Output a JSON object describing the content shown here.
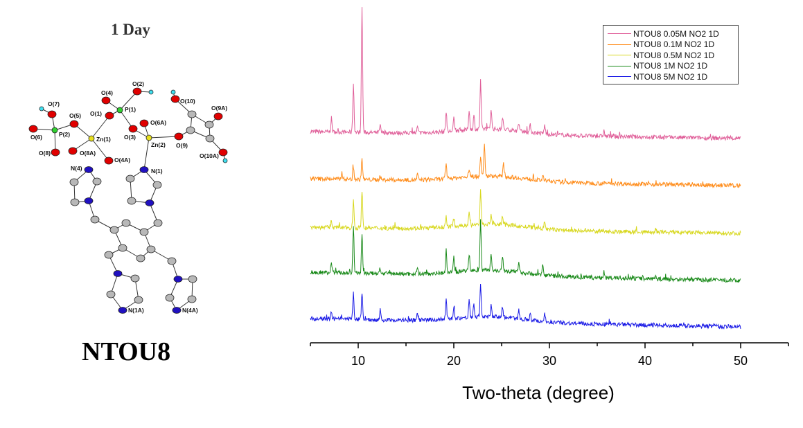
{
  "panel_title": "1 Day",
  "compound_name": "NTOU8",
  "molecule_labels": {
    "O2": "O(2)",
    "O4": "O(4)",
    "P1": "P(1)",
    "O1": "O(1)",
    "O3": "O(3)",
    "Zn1": "Zn(1)",
    "O5": "O(5)",
    "P2": "P(2)",
    "O7": "O(7)",
    "O6": "O(6)",
    "O8": "O(8)",
    "O8A": "O(8A)",
    "O4A": "O(4A)",
    "Zn2": "Zn(2)",
    "O6A": "O(6A)",
    "O9": "O(9)",
    "O10": "O(10)",
    "O9A": "O(9A)",
    "O10A": "O(10A)",
    "N1": "N(1)",
    "N4": "N(4)",
    "N1A": "N(1A)",
    "N4A": "N(4A)"
  },
  "chart_data": {
    "type": "line",
    "title": "",
    "xlabel": "Two-theta (degree)",
    "ylabel": "",
    "xlim": [
      5,
      55
    ],
    "xticks": [
      10,
      20,
      30,
      40,
      50
    ],
    "xtick_labels": [
      "10",
      "20",
      "30",
      "40",
      "50"
    ],
    "ylim": [
      0,
      490
    ],
    "grid": false,
    "legend_position": "top-right",
    "y_units": "intensity (a.u., offset stacked)",
    "series": [
      {
        "name": "NTOU8 0.05M NO2 1D",
        "color": "#e0609a",
        "offset_start": 305,
        "offset_end": 295,
        "peaks": [
          [
            7.2,
            20
          ],
          [
            9.5,
            70
          ],
          [
            10.4,
            180
          ],
          [
            12.3,
            10
          ],
          [
            16.2,
            8
          ],
          [
            19.2,
            30
          ],
          [
            20,
            18
          ],
          [
            21.6,
            28
          ],
          [
            22.1,
            20
          ],
          [
            22.8,
            70
          ],
          [
            23.9,
            30
          ],
          [
            25.1,
            18
          ],
          [
            26.8,
            12
          ],
          [
            28,
            10
          ],
          [
            29.5,
            12
          ],
          [
            35.7,
            8
          ]
        ]
      },
      {
        "name": "NTOU8 0.1M NO2 1D",
        "color": "#ff8c1a",
        "offset_start": 237,
        "offset_end": 227,
        "peaks": [
          [
            8.3,
            10
          ],
          [
            9.5,
            18
          ],
          [
            10.4,
            30
          ],
          [
            12.3,
            6
          ],
          [
            16.2,
            8
          ],
          [
            19.2,
            20
          ],
          [
            21.6,
            12
          ],
          [
            22.8,
            30
          ],
          [
            23.2,
            45
          ],
          [
            25.2,
            18
          ],
          [
            29.3,
            8
          ]
        ]
      },
      {
        "name": "NTOU8 0.5M NO2 1D",
        "color": "#d8d820",
        "offset_start": 167,
        "offset_end": 158,
        "peaks": [
          [
            7.2,
            10
          ],
          [
            9.5,
            40
          ],
          [
            10.4,
            55
          ],
          [
            19.2,
            15
          ],
          [
            20,
            12
          ],
          [
            21.6,
            18
          ],
          [
            22.8,
            50
          ],
          [
            23.9,
            15
          ],
          [
            25.1,
            12
          ],
          [
            29.5,
            10
          ]
        ]
      },
      {
        "name": "NTOU8 1M NO2 1D",
        "color": "#1a8a1a",
        "offset_start": 102,
        "offset_end": 90,
        "peaks": [
          [
            7.2,
            15
          ],
          [
            9.5,
            65
          ],
          [
            10.4,
            55
          ],
          [
            12.3,
            8
          ],
          [
            16.2,
            10
          ],
          [
            19.2,
            30
          ],
          [
            20,
            22
          ],
          [
            21.6,
            25
          ],
          [
            22.8,
            75
          ],
          [
            23.9,
            25
          ],
          [
            25.1,
            22
          ],
          [
            26.8,
            12
          ],
          [
            29.3,
            15
          ],
          [
            35.7,
            10
          ]
        ]
      },
      {
        "name": "NTOU8 5M NO2 1D",
        "color": "#1a1ae6",
        "offset_start": 35,
        "offset_end": 23,
        "peaks": [
          [
            7.2,
            10
          ],
          [
            9.5,
            38
          ],
          [
            10.4,
            38
          ],
          [
            12.3,
            12
          ],
          [
            16.2,
            10
          ],
          [
            19.2,
            25
          ],
          [
            20,
            18
          ],
          [
            21.6,
            25
          ],
          [
            22.1,
            18
          ],
          [
            22.8,
            45
          ],
          [
            23.9,
            15
          ],
          [
            25.1,
            15
          ],
          [
            26.8,
            12
          ],
          [
            28,
            10
          ],
          [
            29.5,
            12
          ],
          [
            47.2,
            5
          ]
        ]
      }
    ]
  }
}
